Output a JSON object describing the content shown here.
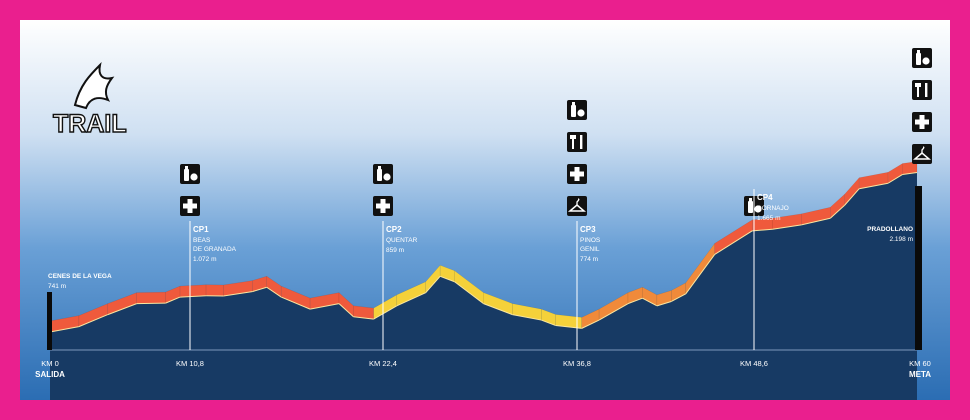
{
  "logo": {
    "text": "TRAIL"
  },
  "start": {
    "place": "CENES DE LA VEGA",
    "elevation": "741 m",
    "km": "KM 0",
    "label": "SALIDA"
  },
  "finish": {
    "place": "PRADOLLANO",
    "elevation": "2.198 m",
    "km": "KM 60",
    "label": "META"
  },
  "checkpoints": [
    {
      "id": "CP1",
      "name_lines": [
        "BEAS",
        "DE GRANADA"
      ],
      "elevation": "1.072 m",
      "km": "KM 10,8",
      "services": [
        "drink-food-icon",
        "first-aid-icon"
      ]
    },
    {
      "id": "CP2",
      "name_lines": [
        "QUENTAR"
      ],
      "elevation": "859 m",
      "km": "KM 22,4",
      "services": [
        "drink-food-icon",
        "first-aid-icon"
      ]
    },
    {
      "id": "CP3",
      "name_lines": [
        "PINOS",
        "GENIL"
      ],
      "elevation": "774 m",
      "km": "KM 36,8",
      "services": [
        "drink-food-icon",
        "cutlery-icon",
        "first-aid-icon",
        "clothes-hanger-icon"
      ]
    },
    {
      "id": "CP4",
      "name_lines": [
        "DORNAJO"
      ],
      "elevation": "1.665 m",
      "km": "KM 48,6",
      "services": [
        "drink-food-icon"
      ]
    }
  ],
  "finish_services": [
    "drink-food-icon",
    "cutlery-icon",
    "first-aid-icon",
    "clothes-hanger-icon"
  ],
  "profile": {
    "km": [
      0,
      2,
      4,
      6,
      8,
      9,
      10.8,
      12,
      14,
      15,
      16,
      18,
      20,
      21,
      22.4,
      24,
      26,
      27,
      28,
      30,
      32,
      34,
      35,
      36.8,
      38,
      40,
      41,
      42,
      43,
      44,
      46,
      48.6,
      50,
      52,
      54,
      55,
      56,
      58,
      59,
      60
    ],
    "elevation_m": [
      741,
      790,
      900,
      1000,
      1005,
      1060,
      1072,
      1070,
      1110,
      1150,
      1060,
      950,
      1000,
      880,
      859,
      980,
      1100,
      1250,
      1200,
      1000,
      900,
      850,
      800,
      774,
      850,
      1000,
      1050,
      980,
      1020,
      1090,
      1450,
      1665,
      1680,
      1720,
      1780,
      1900,
      2050,
      2100,
      2180,
      2198
    ]
  },
  "colors": {
    "frame": "#ea1f8e",
    "ground": "#173a64",
    "warm": "#ef5a3c",
    "yellow": "#f5d13a",
    "orange": "#f08a3a"
  }
}
